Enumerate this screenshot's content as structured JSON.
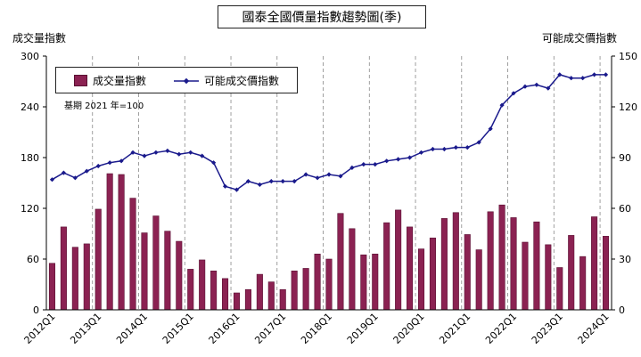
{
  "title": "國泰全國價量指數趨勢圖(季)",
  "left_axis_title": "成交量指數",
  "right_axis_title": "可能成交價指數",
  "base_note": "基期 2021 年=100",
  "legend": {
    "volume_label": "成交量指數",
    "price_label": "可能成交價指數"
  },
  "colors": {
    "bar": "#8b2252",
    "bar_edge": "#5a1033",
    "line": "#1a1a8c",
    "grid": "#888888"
  },
  "chart_data": {
    "type": "bar",
    "x_tick_labels": [
      "2012Q1",
      "2013Q1",
      "2014Q1",
      "2015Q1",
      "2016Q1",
      "2017Q1",
      "2018Q1",
      "2019Q1",
      "2020Q1",
      "2021Q1",
      "2022Q1",
      "2023Q1",
      "2024Q1"
    ],
    "left_axis": {
      "ylim": [
        0,
        300
      ],
      "ticks": [
        0,
        60,
        120,
        180,
        240,
        300
      ]
    },
    "right_axis": {
      "ylim": [
        0,
        150
      ],
      "ticks": [
        0,
        30,
        60,
        90,
        120,
        150
      ]
    },
    "grid": "vertical dashed at each Q1",
    "legend_position": "top-left",
    "series": [
      {
        "name": "成交量指數",
        "type": "bar",
        "axis": "left",
        "values": [
          55,
          98,
          74,
          78,
          119,
          161,
          160,
          132,
          91,
          111,
          93,
          81,
          48,
          59,
          46,
          37,
          20,
          24,
          42,
          33,
          24,
          46,
          49,
          66,
          60,
          114,
          96,
          65,
          66,
          103,
          118,
          98,
          72,
          85,
          108,
          115,
          89,
          71,
          116,
          124,
          109,
          80,
          104,
          77,
          50,
          88,
          63,
          110,
          87
        ]
      },
      {
        "name": "可能成交價指數",
        "type": "line",
        "axis": "right",
        "values": [
          77,
          81,
          78,
          82,
          85,
          87,
          88,
          93,
          91,
          93,
          94,
          92,
          93,
          91,
          87,
          73,
          71,
          76,
          74,
          76,
          76,
          76,
          80,
          78,
          80,
          79,
          84,
          86,
          86,
          88,
          89,
          90,
          93,
          95,
          95,
          96,
          96,
          99,
          107,
          121,
          128,
          132,
          133,
          131,
          139,
          137,
          137,
          139,
          139
        ]
      }
    ]
  }
}
